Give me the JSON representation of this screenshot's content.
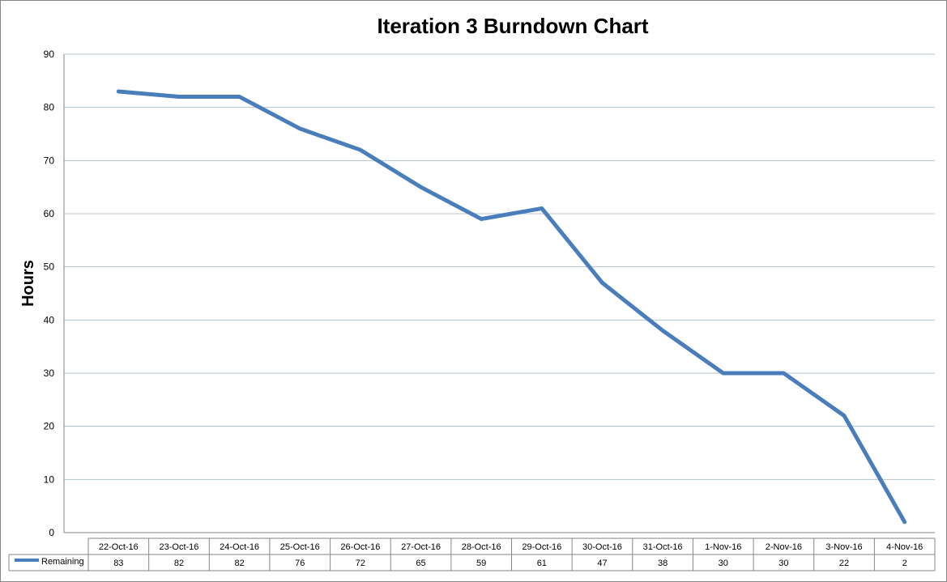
{
  "chart_data": {
    "type": "line",
    "title": "Iteration 3 Burndown Chart",
    "xlabel": "",
    "ylabel": "Hours",
    "ylim": [
      0,
      90
    ],
    "yticks": [
      0,
      10,
      20,
      30,
      40,
      50,
      60,
      70,
      80,
      90
    ],
    "grid": true,
    "legend": "data-table-row",
    "categories": [
      "22-Oct-16",
      "23-Oct-16",
      "24-Oct-16",
      "25-Oct-16",
      "26-Oct-16",
      "27-Oct-16",
      "28-Oct-16",
      "29-Oct-16",
      "30-Oct-16",
      "31-Oct-16",
      "1-Nov-16",
      "2-Nov-16",
      "3-Nov-16",
      "4-Nov-16"
    ],
    "series": [
      {
        "name": "Remaining",
        "color": "#4a7ebb",
        "values": [
          83,
          82,
          82,
          76,
          72,
          65,
          59,
          61,
          47,
          38,
          30,
          30,
          22,
          2
        ]
      }
    ]
  }
}
